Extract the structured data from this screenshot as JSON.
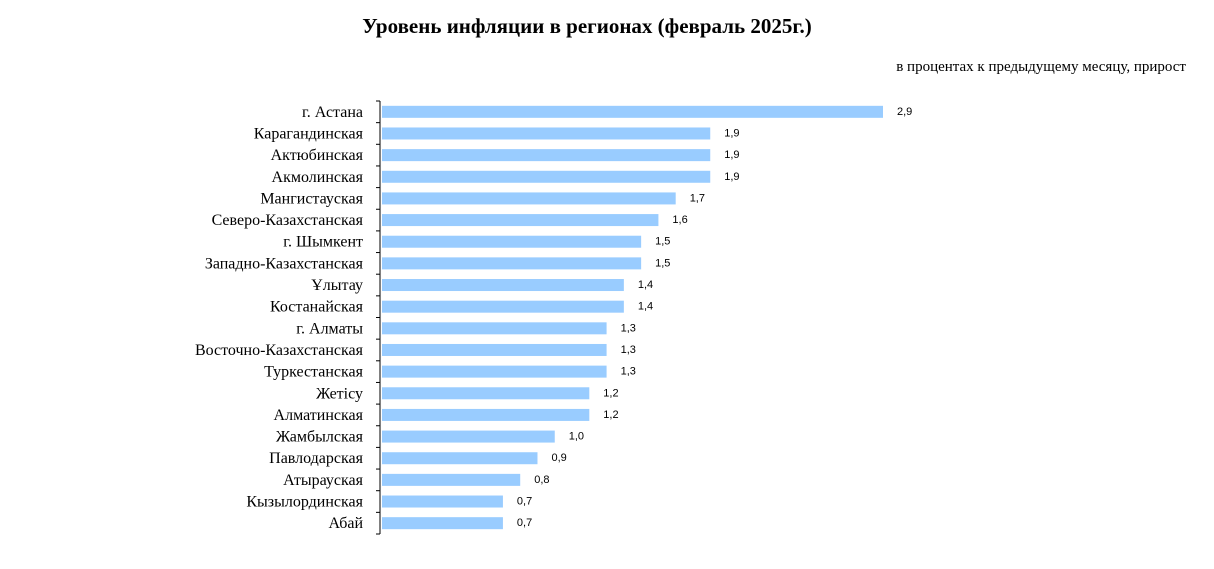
{
  "chart_data": {
    "type": "bar",
    "orientation": "horizontal",
    "title": "Уровень инфляции в регионах (февраль 2025г.)",
    "subtitle": "в процентах к предыдущему месяцу, прирост",
    "categories": [
      "г. Астана",
      "Карагандинская",
      "Актюбинская",
      "Акмолинская",
      "Мангистауская",
      "Северо-Казахстанская",
      "г. Шымкент",
      "Западно-Казахстанская",
      "Ұлытау",
      "Костанайская",
      "г. Алматы",
      "Восточно-Казахстанская",
      "Туркестанская",
      "Жетісу",
      "Алматинская",
      "Жамбылская",
      "Павлодарская",
      "Атырауская",
      "Кызылординская",
      "Абай"
    ],
    "values": [
      2.9,
      1.9,
      1.9,
      1.9,
      1.7,
      1.6,
      1.5,
      1.5,
      1.4,
      1.4,
      1.3,
      1.3,
      1.3,
      1.2,
      1.2,
      1.0,
      0.9,
      0.8,
      0.7,
      0.7
    ],
    "value_labels": [
      "2,9",
      "1,9",
      "1,9",
      "1,9",
      "1,7",
      "1,6",
      "1,5",
      "1,5",
      "1,4",
      "1,4",
      "1,3",
      "1,3",
      "1,3",
      "1,2",
      "1,2",
      "1,0",
      "0,9",
      "0,8",
      "0,7",
      "0,7"
    ],
    "xlim": [
      0,
      2.9
    ],
    "grid": false,
    "bar_color": "#99ccff"
  }
}
